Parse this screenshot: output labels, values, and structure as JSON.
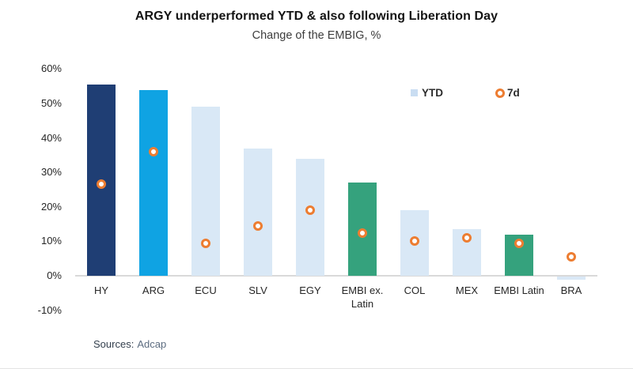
{
  "header": {
    "title": "ARGY underperformed YTD & also following Liberation Day",
    "subtitle": "Change of the EMBIG, %"
  },
  "legend": {
    "ytd_label": "YTD",
    "sevend_label": "7d"
  },
  "footer": {
    "sources_label": "Sources:",
    "sources_value": "Adcap"
  },
  "colors": {
    "navy": "#1f3e74",
    "cyan": "#0fa3e3",
    "light_blue": "#d9e8f6",
    "green": "#35a27d",
    "orange_marker": "#ed7d31",
    "axis_line": "#d9d9d9",
    "tick_text": "#262626"
  },
  "chart_data": {
    "type": "bar",
    "title": "ARGY underperformed YTD & also following Liberation Day",
    "subtitle": "Change of the EMBIG, %",
    "categories": [
      "HY",
      "ARG",
      "ECU",
      "SLV",
      "EGY",
      "EMBI ex. Latin",
      "COL",
      "MEX",
      "EMBI Latin",
      "BRA"
    ],
    "series": [
      {
        "name": "YTD",
        "type": "bar",
        "values": [
          55.5,
          54,
          49,
          37,
          34,
          27,
          19,
          13.5,
          12,
          -1
        ]
      },
      {
        "name": "7d",
        "type": "scatter",
        "values": [
          26.5,
          36,
          9.5,
          14.5,
          19,
          12.5,
          10,
          11,
          9.5,
          5.5
        ]
      }
    ],
    "bar_colors": [
      "#1f3e74",
      "#0fa3e3",
      "#d9e8f6",
      "#d9e8f6",
      "#d9e8f6",
      "#35a27d",
      "#d9e8f6",
      "#d9e8f6",
      "#35a27d",
      "#d9e8f6"
    ],
    "ylabel": "",
    "xlabel": "",
    "ylim": [
      -10,
      60
    ],
    "ytick_step": 10,
    "yticks": [
      "60%",
      "50%",
      "40%",
      "30%",
      "20%",
      "10%",
      "0%",
      "-10%"
    ],
    "grid": false,
    "legend_position": "top-right"
  }
}
